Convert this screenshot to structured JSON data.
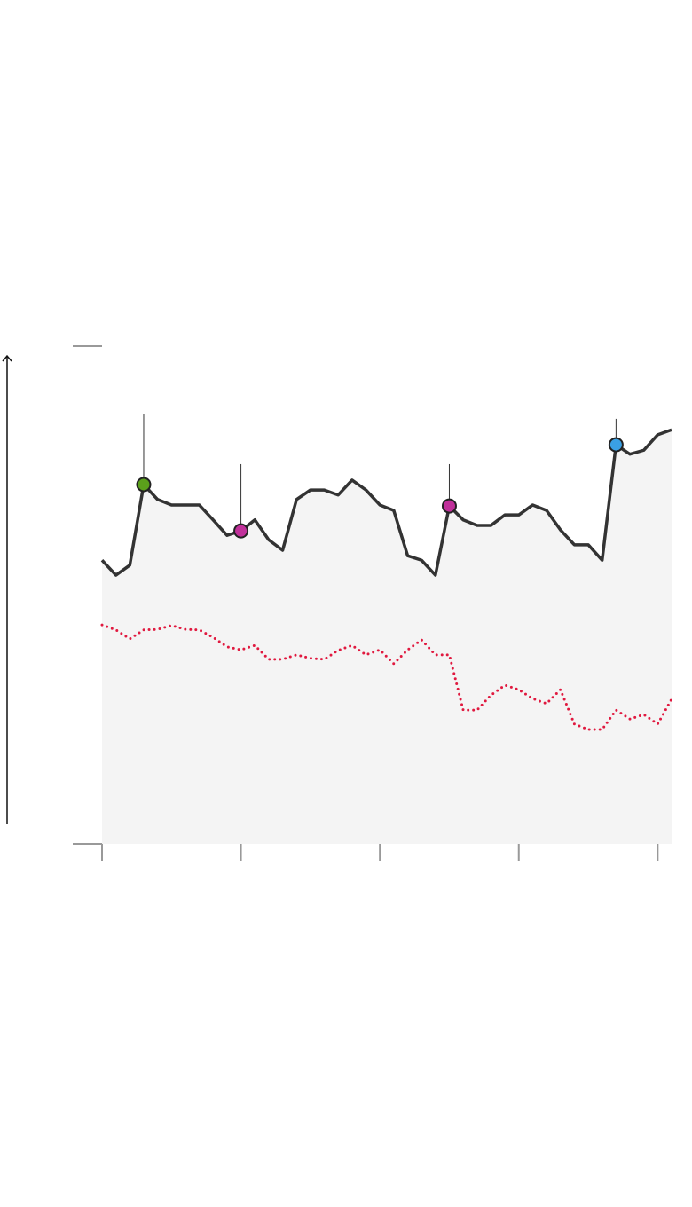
{
  "chart_data": {
    "type": "line",
    "x": [
      0,
      1,
      2,
      3,
      4,
      5,
      6,
      7,
      8,
      9,
      10,
      11,
      12,
      13,
      14,
      15,
      16,
      17,
      18,
      19,
      20,
      21,
      22,
      23,
      24,
      25,
      26,
      27,
      28,
      29,
      30,
      31,
      32,
      33,
      34,
      35,
      36,
      37,
      38,
      39,
      40,
      41
    ],
    "xlim": [
      0,
      41
    ],
    "xticks": [
      0,
      10,
      20,
      30,
      40
    ],
    "ylim": [
      0,
      100
    ],
    "yticks": [
      0,
      100
    ],
    "fill_color": "#f4f4f4",
    "series": [
      {
        "color": "#333333",
        "style": "solid",
        "values": [
          57.0,
          54.0,
          56.0,
          72.2,
          69.2,
          68.1,
          68.1,
          68.1,
          65.1,
          62.0,
          62.9,
          65.1,
          61.1,
          59.0,
          69.2,
          71.1,
          71.1,
          70.1,
          73.1,
          71.1,
          68.1,
          67.0,
          57.9,
          57.0,
          54.0,
          67.9,
          65.1,
          64.0,
          64.0,
          66.1,
          66.1,
          68.1,
          67.0,
          63.1,
          60.1,
          60.1,
          57.0,
          80.2,
          78.3,
          79.1,
          82.2,
          83.2
        ]
      },
      {
        "color": "#e0193f",
        "style": "dotted",
        "values": [
          44.0,
          43.0,
          41.2,
          43.0,
          43.1,
          43.9,
          43.1,
          43.0,
          41.5,
          39.6,
          39.0,
          39.9,
          37.1,
          37.1,
          38.0,
          37.3,
          37.1,
          38.9,
          39.9,
          38.0,
          39.0,
          36.2,
          39.0,
          41.0,
          38.0,
          38.0,
          26.9,
          26.9,
          29.9,
          31.9,
          31.0,
          29.2,
          28.2,
          31.0,
          24.1,
          23.0,
          23.0,
          26.9,
          25.1,
          26.0,
          24.1,
          29.1
        ]
      }
    ],
    "markers": [
      {
        "x": 3,
        "top": 86.3,
        "color": "#5ba01b"
      },
      {
        "x": 10,
        "top": 76.3,
        "color": "#c0309a"
      },
      {
        "x": 25,
        "top": 76.3,
        "color": "#c0309a"
      },
      {
        "x": 37,
        "top": 85.4,
        "color": "#3aa0e4"
      }
    ]
  }
}
